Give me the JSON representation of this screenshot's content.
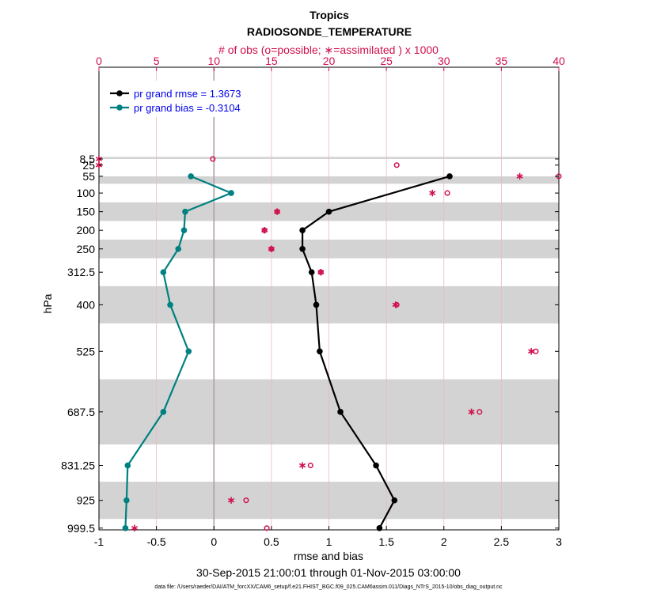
{
  "chart_data": {
    "type": "line",
    "title": "Tropics",
    "subtitle": "RADIOSONDE_TEMPERATURE",
    "top_axis_label": "# of obs (o=possible; ∗=assimilated ) x 1000",
    "xlabel": "rmse and bias",
    "ylabel": "hPa",
    "date_range": "30-Sep-2015 21:00:01 through 01-Nov-2015 03:00:00",
    "footnote": "data file: /Users/raeder/DAI/ATM_forcXX/CAM6_setup/f.e21.FHIST_BGC.f09_025.CAM6assim.011/Diags_NTrS_2015-10/obs_diag_output.nc",
    "xlim": [
      -1,
      3
    ],
    "x_ticks": [
      "-1",
      "-0.5",
      "0",
      "0.5",
      "1",
      "1.5",
      "2",
      "2.5",
      "3"
    ],
    "top_xlim": [
      0,
      40
    ],
    "top_ticks": [
      "0",
      "5",
      "10",
      "15",
      "20",
      "25",
      "30",
      "35",
      "40"
    ],
    "levels": [
      "8.5",
      "25",
      "55",
      "100",
      "150",
      "200",
      "250",
      "312.5",
      "400",
      "525",
      "687.5",
      "831.25",
      "925",
      "999.5"
    ],
    "level_values": [
      8.5,
      25,
      55,
      100,
      150,
      200,
      250,
      312.5,
      400,
      525,
      687.5,
      831.25,
      925,
      999.5
    ],
    "shaded_bands": [
      [
        3,
        8.5
      ],
      [
        55,
        75
      ],
      [
        125,
        175
      ],
      [
        225,
        275
      ],
      [
        350,
        450
      ],
      [
        600,
        775
      ],
      [
        875,
        975
      ]
    ],
    "series": [
      {
        "name": "pr grand rmse = 1.3673",
        "color": "#000000",
        "x": [
          null,
          null,
          2.05,
          null,
          1.0,
          0.77,
          0.77,
          0.85,
          0.89,
          0.92,
          1.1,
          1.41,
          1.57,
          1.44
        ]
      },
      {
        "name": "pr grand bias = -0.3104",
        "color": "#008080",
        "x": [
          null,
          null,
          -0.2,
          0.15,
          -0.25,
          -0.26,
          -0.31,
          -0.44,
          -0.38,
          -0.22,
          -0.44,
          -0.75,
          -0.76,
          -0.77
        ]
      }
    ],
    "obs_possible": [
      9.9,
      25.9,
      40.0,
      30.3,
      15.5,
      14.4,
      15.0,
      19.3,
      25.9,
      38.0,
      33.1,
      18.4,
      12.8,
      14.6
    ],
    "obs_assimilated": [
      0.0,
      0.0,
      36.6,
      29.0,
      15.5,
      14.4,
      15.0,
      19.3,
      25.8,
      37.6,
      32.4,
      17.7,
      11.5,
      3.1
    ],
    "legend_placement": "top-left",
    "colors": {
      "obs": "#d0104c",
      "legend_text": "#0000ee",
      "band": "#d3d3d3",
      "zero_line": "#b0a0a8"
    }
  }
}
